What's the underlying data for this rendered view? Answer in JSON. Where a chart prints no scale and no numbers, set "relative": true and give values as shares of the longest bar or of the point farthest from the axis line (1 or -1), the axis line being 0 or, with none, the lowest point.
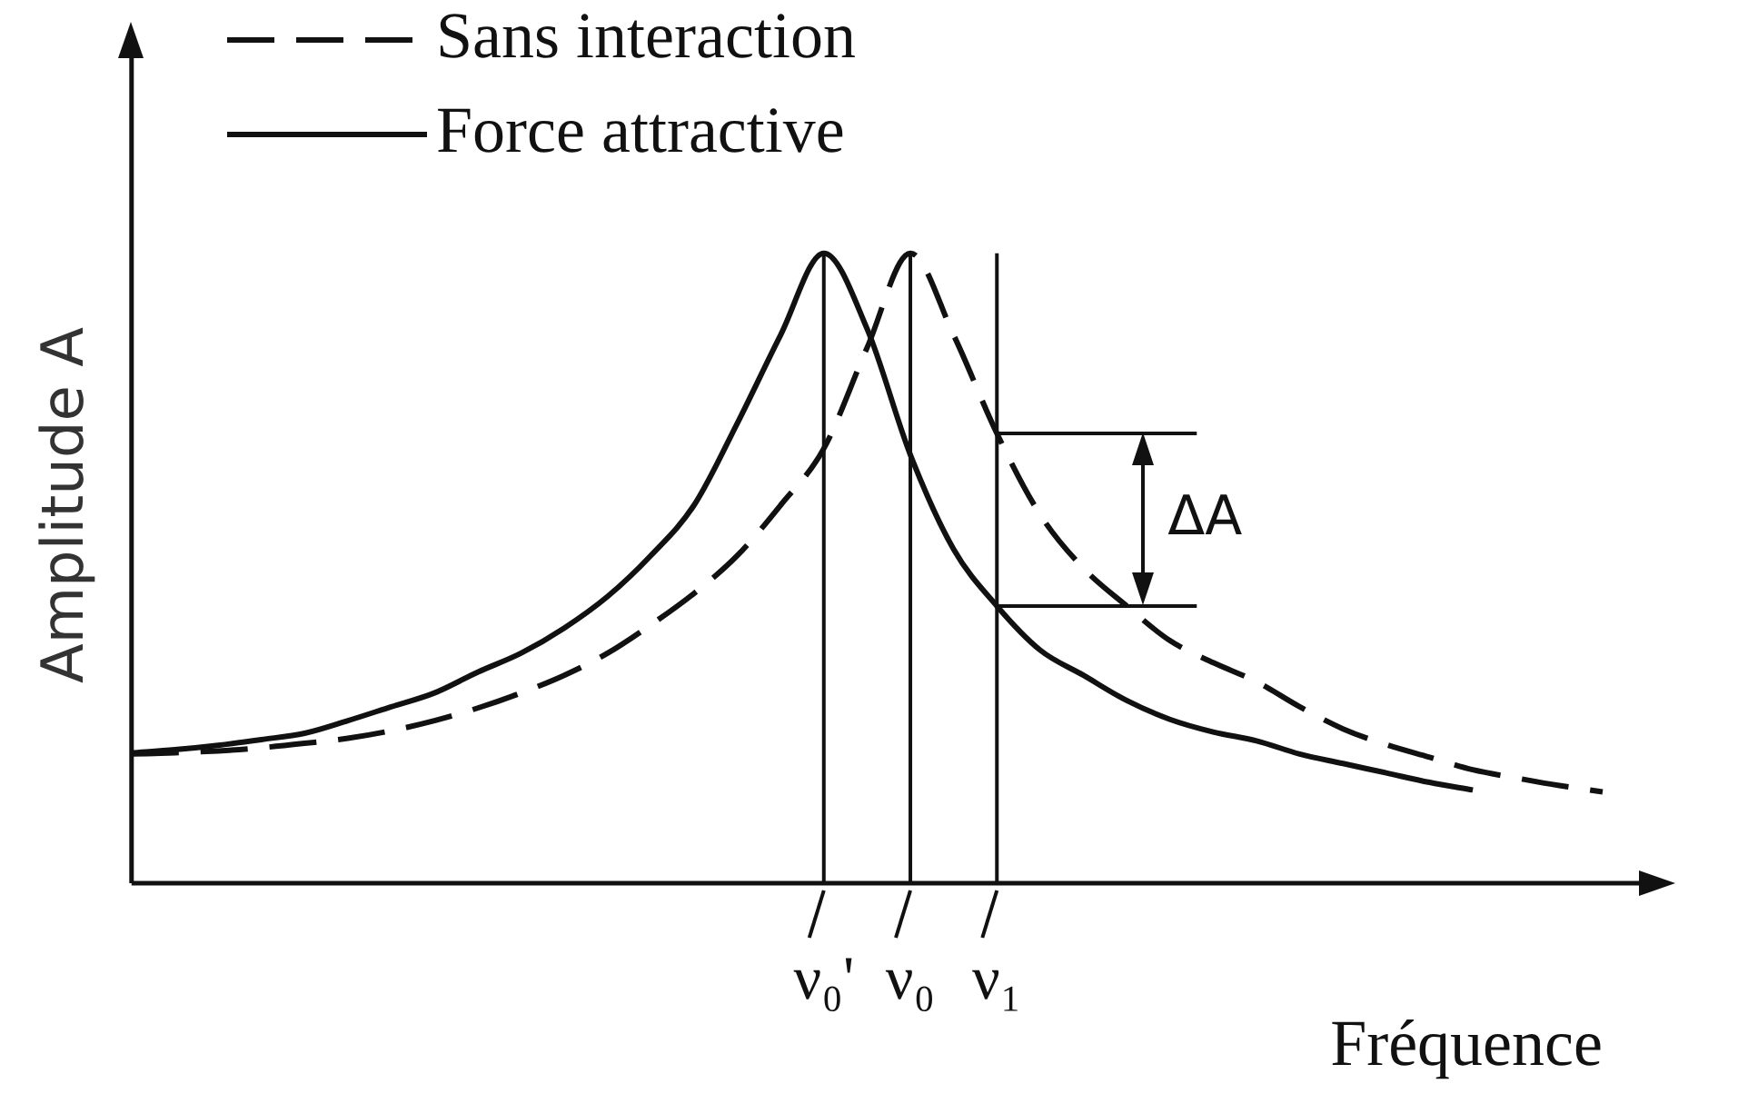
{
  "chart_data": {
    "type": "line",
    "relative": true,
    "xlabel": "Fréquence",
    "ylabel": "Amplitude A",
    "legend": "top left",
    "marker": "none",
    "grid": false,
    "categories": [
      null,
      null,
      null,
      null,
      null,
      null,
      null,
      null,
      null,
      null,
      null,
      null,
      null,
      null,
      null,
      null,
      "ν₀'",
      null,
      "ν₀",
      null,
      "ν₁",
      null,
      null,
      null,
      null,
      null,
      null,
      null,
      null,
      null,
      null,
      null,
      null,
      null,
      null
    ],
    "series": [
      {
        "name": "Sans interaction",
        "color": "#111111",
        "line_style": "dashed",
        "values": [
          0.205,
          0.207,
          0.21,
          0.215,
          0.222,
          0.23,
          0.242,
          0.258,
          0.278,
          0.302,
          0.33,
          0.365,
          0.41,
          0.46,
          0.52,
          0.6,
          0.69,
          0.85,
          1,
          0.87,
          0.714,
          0.585,
          0.5,
          0.44,
          0.385,
          0.35,
          0.32,
          0.28,
          0.245,
          0.22,
          0.2,
          0.18,
          0.167,
          0.155,
          0.145
        ]
      },
      {
        "name": "Force attractive",
        "color": "#111111",
        "line_style": "solid",
        "values": [
          0.207,
          0.212,
          0.219,
          0.228,
          0.238,
          0.258,
          0.28,
          0.302,
          0.335,
          0.365,
          0.405,
          0.455,
          0.52,
          0.6,
          0.73,
          0.87,
          1,
          0.88,
          0.68,
          0.53,
          0.44,
          0.37,
          0.33,
          0.29,
          0.26,
          0.24,
          0.226,
          0.205,
          0.19,
          0.175,
          0.16,
          0.148,
          null,
          null,
          null
        ]
      }
    ],
    "ref_lines": [
      {
        "axis": "x",
        "value": "ν₀'"
      },
      {
        "axis": "x",
        "value": "ν₀"
      },
      {
        "axis": "x",
        "value": "ν₁"
      }
    ],
    "annotations": [
      {
        "text": "ΔA",
        "x": "ν₁"
      }
    ]
  }
}
